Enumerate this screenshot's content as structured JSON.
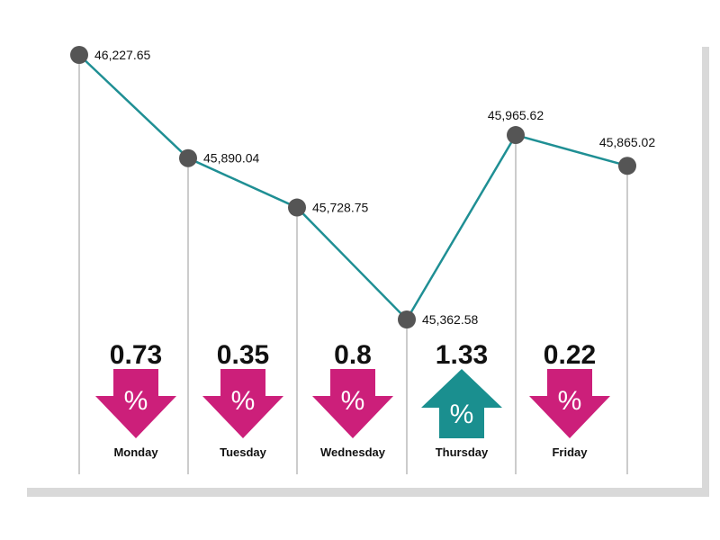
{
  "chart_data": {
    "type": "line",
    "categories": [
      "Monday",
      "Tuesday",
      "Wednesday",
      "Thursday",
      "Friday",
      "Friday"
    ],
    "values": [
      46227.65,
      45890.04,
      45728.75,
      45362.58,
      45965.62,
      45865.02
    ],
    "value_labels": [
      "46,227.65",
      "45,890.04",
      "45,728.75",
      "45,362.58",
      "45,965.62",
      "45,865.02"
    ],
    "day_labels": [
      "Monday",
      "Tuesday",
      "Wednesday",
      "Thursday",
      "Friday"
    ],
    "percent_changes": [
      {
        "day": "Monday",
        "value": "0.73",
        "direction": "down"
      },
      {
        "day": "Tuesday",
        "value": "0.35",
        "direction": "down"
      },
      {
        "day": "Wednesday",
        "value": "0.8",
        "direction": "down"
      },
      {
        "day": "Thursday",
        "value": "1.33",
        "direction": "up"
      },
      {
        "day": "Friday",
        "value": "0.22",
        "direction": "down"
      }
    ],
    "percent_symbol": "%",
    "colors": {
      "line": "#1f8f94",
      "marker": "#555555",
      "down": "#cc1f7a",
      "up": "#1a8f8f",
      "gridline": "#9a9a9a"
    }
  }
}
